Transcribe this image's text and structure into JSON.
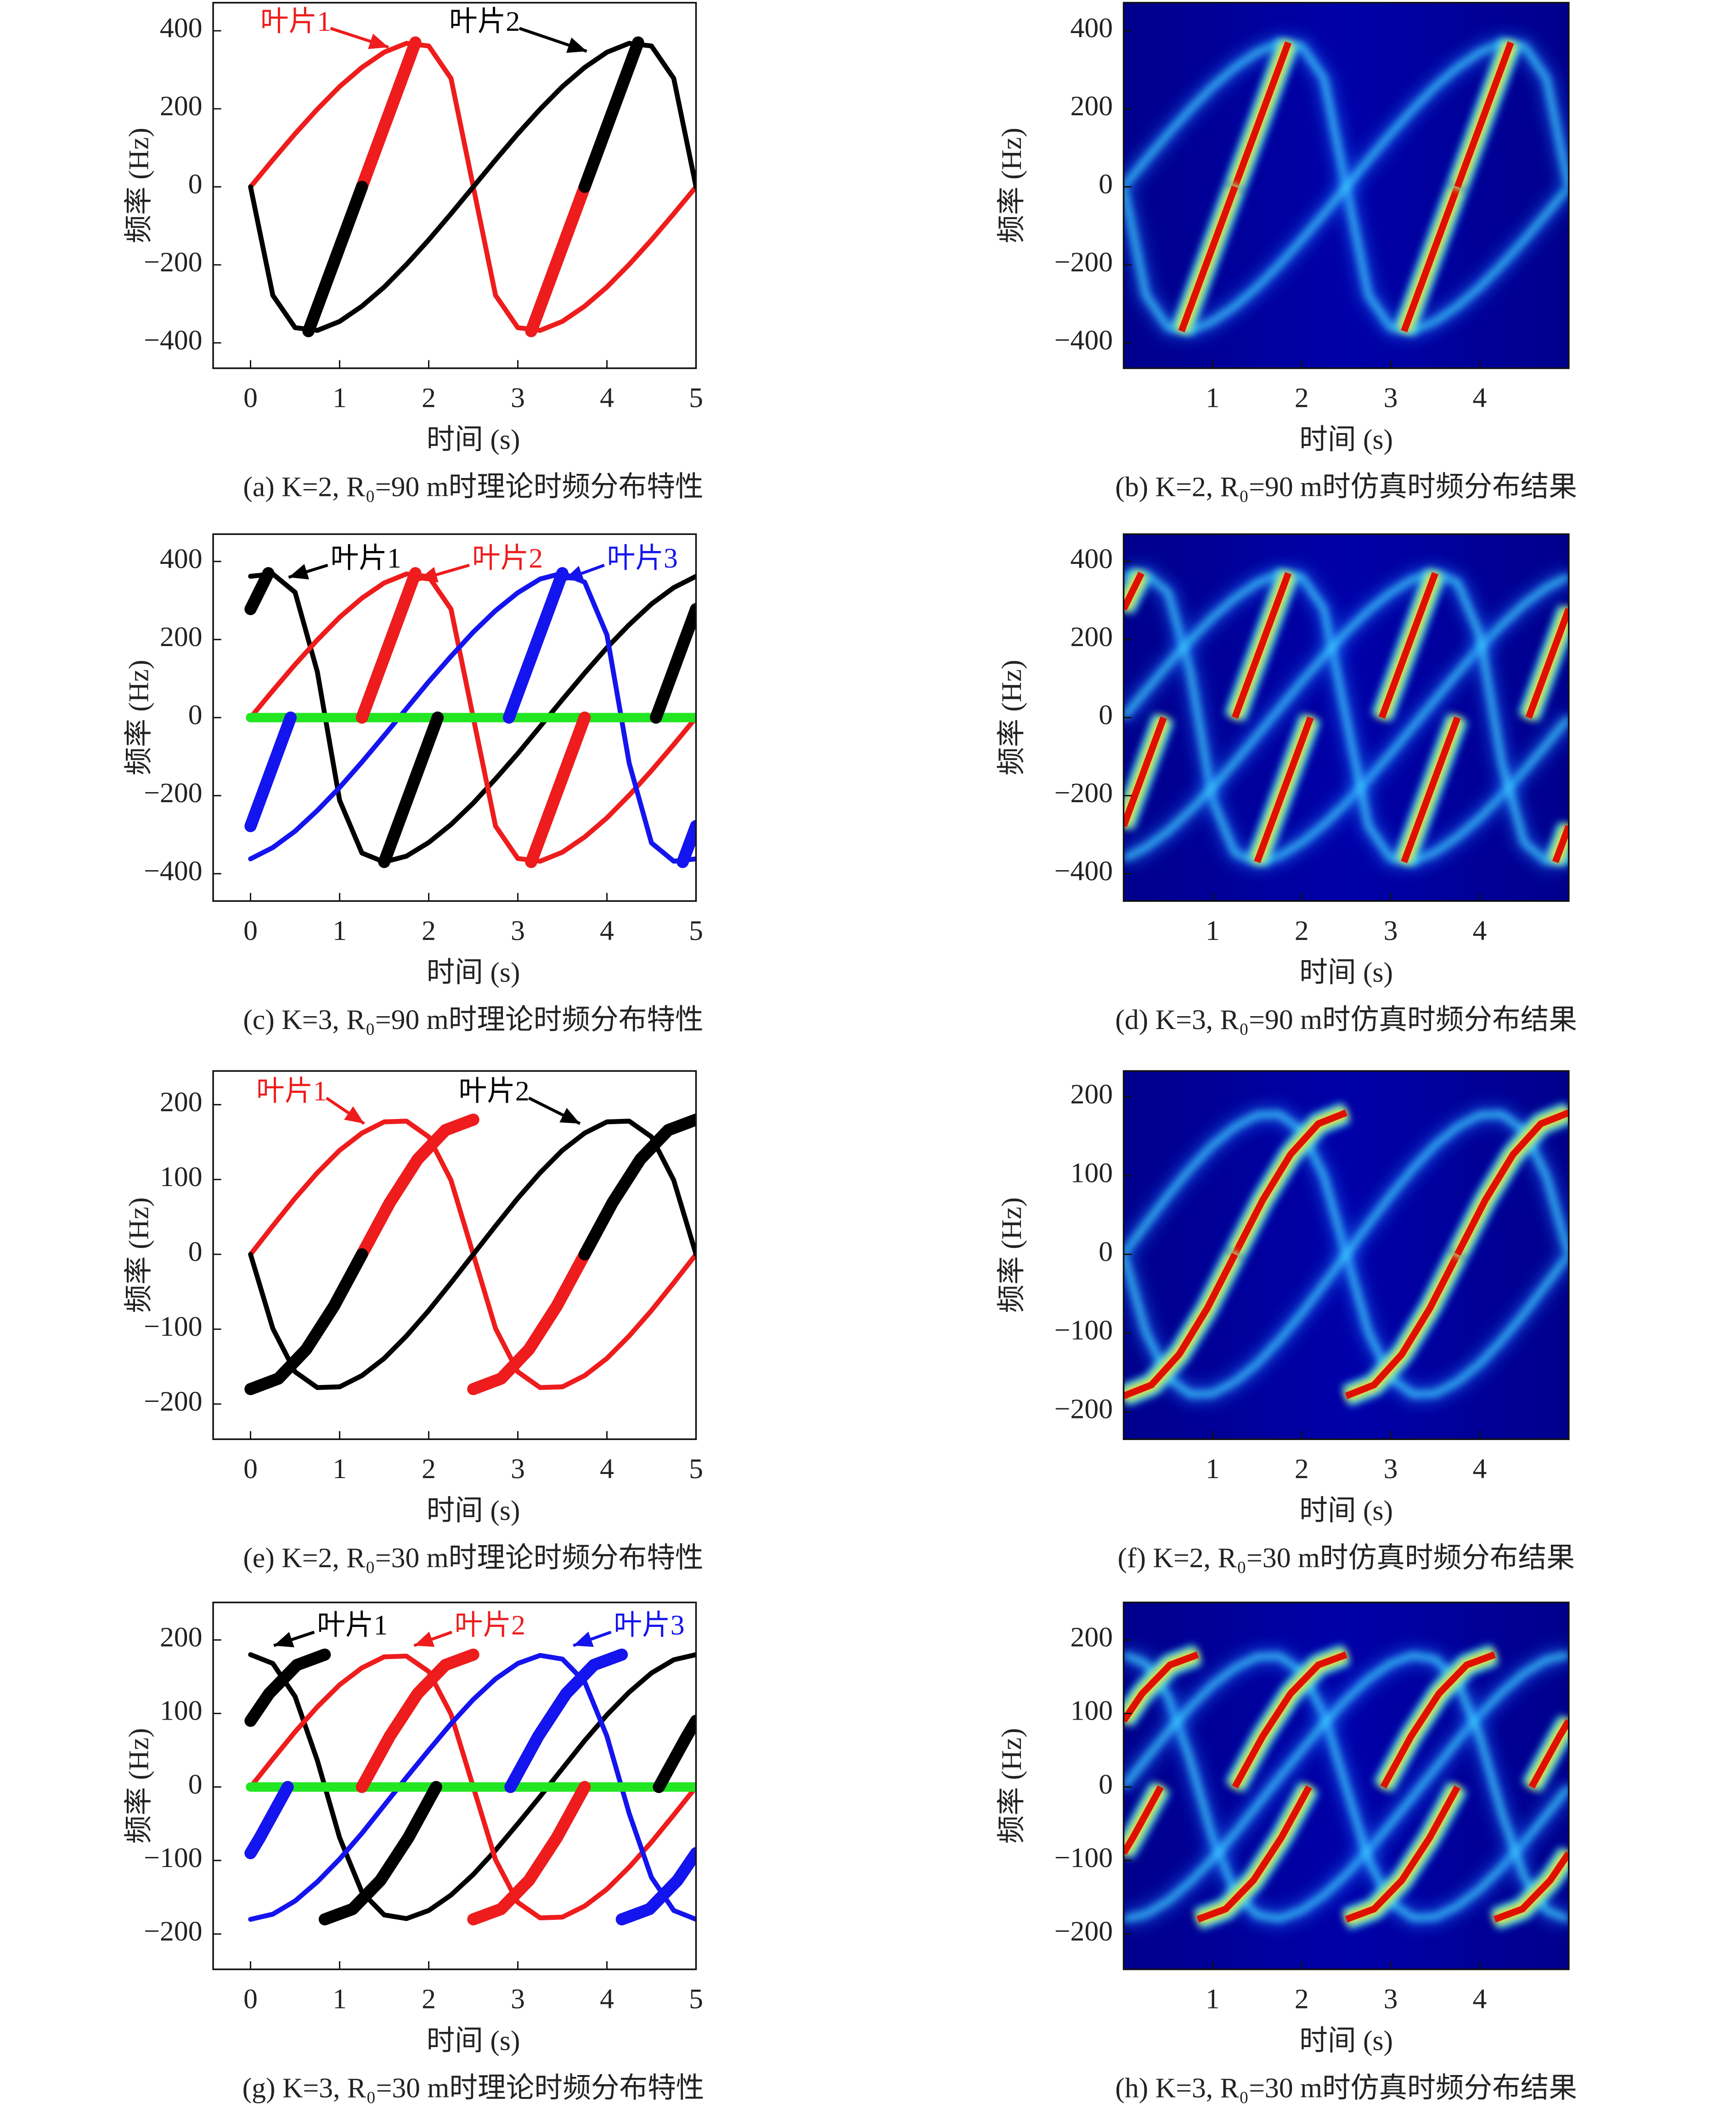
{
  "chart_data": [
    {
      "type": "line",
      "xlim": [
        -0.42,
        5
      ],
      "xticks": [
        0,
        1,
        2,
        3,
        4,
        5
      ],
      "ylim": [
        -465,
        472
      ],
      "yticks": [
        {
          "value": -400,
          "label": "−400"
        },
        {
          "value": -200,
          "label": "−200"
        },
        0,
        200,
        400
      ],
      "xlabel": "时间 (s)",
      "ylabel": "频率 (Hz)",
      "caption": "(a) K=2, R₀=90 m时理论时频分布特性",
      "x": [
        0,
        0.25,
        0.5,
        0.75,
        1,
        1.25,
        1.5,
        1.75,
        2,
        2.25,
        2.5,
        2.75,
        3,
        3.25,
        3.5,
        3.75,
        4,
        4.25,
        4.5,
        4.75,
        5
      ],
      "series": [
        {
          "name": "叶片1",
          "color": "#ee1c1c",
          "values": [
            0,
            69,
            136,
            199,
            257,
            306,
            345,
            368,
            361,
            278,
            0,
            -278,
            -361,
            -368,
            -345,
            -306,
            -257,
            -199,
            -136,
            -69,
            0
          ]
        },
        {
          "name": "叶片2",
          "color": "#000000",
          "values": [
            0,
            -278,
            -361,
            -368,
            -345,
            -306,
            -257,
            -199,
            -136,
            -69,
            0,
            69,
            136,
            199,
            257,
            306,
            345,
            368,
            361,
            278,
            0
          ]
        },
        {
          "color": "#ee1c1c",
          "width": "thick",
          "x": [
            1.25,
            1.85,
            2.5,
            3.15,
            3.75
          ],
          "values": [
            0,
            370,
            null,
            -370,
            0
          ]
        },
        {
          "color": "#000000",
          "width": "thick",
          "x": [
            0.65,
            1.25,
            2.5,
            3.75,
            4.35
          ],
          "values": [
            -370,
            0,
            null,
            0,
            370
          ]
        }
      ]
    },
    {
      "type": "spectrogram",
      "xlim": [
        0,
        5
      ],
      "xticks": [
        1,
        2,
        3,
        4
      ],
      "ylim": [
        -465,
        472
      ],
      "yticks": [
        {
          "value": -400,
          "label": "−400"
        },
        {
          "value": -200,
          "label": "−200"
        },
        0,
        200,
        400
      ],
      "xlabel": "时间 (s)",
      "ylabel": "频率 (Hz)",
      "caption": "(b) K=2, R₀=90 m时仿真时频分布结果"
    },
    {
      "type": "line",
      "xlim": [
        -0.42,
        5
      ],
      "xticks": [
        0,
        1,
        2,
        3,
        4,
        5
      ],
      "ylim": [
        -470,
        470
      ],
      "yticks": [
        {
          "value": -400,
          "label": "−400"
        },
        {
          "value": -200,
          "label": "−200"
        },
        0,
        200,
        400
      ],
      "xlabel": "时间 (s)",
      "ylabel": "频率 (Hz)",
      "caption": "(c) K=3, R₀=90 m时理论时频分布特性",
      "x": [
        0,
        0.25,
        0.5,
        0.75,
        1,
        1.25,
        1.5,
        1.75,
        2,
        2.25,
        2.5,
        2.75,
        3,
        3.25,
        3.5,
        3.75,
        4,
        4.25,
        4.5,
        4.75,
        5
      ],
      "series": [
        {
          "name": "叶片1",
          "color": "#000000",
          "values": [
            362,
            368,
            321,
            117,
            -212,
            -347,
            -370,
            -355,
            -320,
            -274,
            -219,
            -157,
            -92,
            -23,
            46,
            114,
            179,
            238,
            291,
            333,
            362
          ]
        },
        {
          "name": "叶片2",
          "color": "#ee1c1c",
          "values": [
            0,
            69,
            136,
            199,
            257,
            306,
            345,
            368,
            361,
            278,
            0,
            -278,
            -361,
            -368,
            -345,
            -306,
            -257,
            -199,
            -136,
            -69,
            0
          ]
        },
        {
          "name": "叶片3",
          "color": "#1414ee",
          "values": [
            -362,
            -333,
            -291,
            -238,
            -179,
            -114,
            -46,
            23,
            92,
            157,
            219,
            274,
            320,
            355,
            370,
            347,
            212,
            -117,
            -321,
            -368,
            -362
          ]
        },
        {
          "color": "#22e622",
          "width": "medium",
          "x": [
            0,
            5
          ],
          "values": [
            0,
            0
          ]
        },
        {
          "color": "#000000",
          "width": "thick",
          "x": [
            0,
            0.2,
            0.9,
            1.5,
            2.1,
            3.3,
            4.55,
            5
          ],
          "values": [
            278,
            370,
            null,
            -370,
            0,
            null,
            0,
            278
          ]
        },
        {
          "color": "#ee1c1c",
          "width": "thick",
          "x": [
            1.25,
            1.85,
            2.5,
            3.15,
            3.75
          ],
          "values": [
            0,
            370,
            null,
            -370,
            0
          ]
        },
        {
          "color": "#1414ee",
          "width": "thick",
          "x": [
            0,
            0.45,
            1.5,
            2.9,
            3.5,
            4.2,
            4.85,
            5
          ],
          "values": [
            -278,
            0,
            null,
            0,
            370,
            null,
            -370,
            -278
          ]
        }
      ]
    },
    {
      "type": "spectrogram",
      "xlim": [
        0,
        5
      ],
      "xticks": [
        1,
        2,
        3,
        4
      ],
      "ylim": [
        -470,
        470
      ],
      "yticks": [
        {
          "value": -400,
          "label": "−400"
        },
        {
          "value": -200,
          "label": "−200"
        },
        0,
        200,
        400
      ],
      "xlabel": "时间 (s)",
      "ylabel": "频率 (Hz)",
      "caption": "(d) K=3, R₀=90 m时仿真时频分布结果"
    },
    {
      "type": "line",
      "xlim": [
        -0.42,
        5
      ],
      "xticks": [
        0,
        1,
        2,
        3,
        4,
        5
      ],
      "ylim": [
        -247,
        245
      ],
      "yticks": [
        {
          "value": -200,
          "label": "−200"
        },
        {
          "value": -100,
          "label": "−100"
        },
        0,
        100,
        200
      ],
      "xlabel": "时间 (s)",
      "ylabel": "频率 (Hz)",
      "caption": "(e) K=2, R₀=30 m时理论时频分布特性",
      "x": [
        0,
        0.25,
        0.5,
        0.75,
        1,
        1.25,
        1.5,
        1.75,
        2,
        2.25,
        2.5,
        2.75,
        3,
        3.25,
        3.5,
        3.75,
        4,
        4.25,
        4.5,
        4.75,
        5
      ],
      "series": [
        {
          "name": "叶片1",
          "color": "#ee1c1c",
          "values": [
            0,
            38,
            75,
            109,
            139,
            162,
            177,
            178,
            157,
            99,
            0,
            -99,
            -157,
            -178,
            -177,
            -162,
            -139,
            -109,
            -75,
            -38,
            0
          ]
        },
        {
          "name": "叶片2",
          "color": "#000000",
          "values": [
            0,
            -99,
            -157,
            -178,
            -177,
            -162,
            -139,
            -109,
            -75,
            -38,
            0,
            38,
            75,
            109,
            139,
            162,
            177,
            178,
            157,
            99,
            0
          ]
        },
        {
          "color": "#ee1c1c",
          "width": "thick",
          "x": [
            1.25,
            1.5625,
            1.875,
            2.1875,
            2.5,
            2.5,
            2.5,
            2.8125,
            3.125,
            3.4375,
            3.75
          ],
          "values": [
            0,
            69,
            127,
            166,
            180,
            null,
            -180,
            -166,
            -127,
            -69,
            0
          ]
        },
        {
          "color": "#000000",
          "width": "thick",
          "x": [
            0,
            0.3125,
            0.625,
            0.9375,
            1.25,
            2.5,
            3.75,
            4.0625,
            4.375,
            4.6875,
            5
          ],
          "values": [
            -180,
            -166,
            -127,
            -69,
            0,
            null,
            0,
            69,
            127,
            166,
            180
          ]
        }
      ]
    },
    {
      "type": "spectrogram",
      "xlim": [
        0,
        5
      ],
      "xticks": [
        1,
        2,
        3,
        4
      ],
      "ylim": [
        -235,
        233
      ],
      "yticks": [
        {
          "value": -200,
          "label": "−200"
        },
        {
          "value": -100,
          "label": "−100"
        },
        0,
        100,
        200
      ],
      "xlabel": "时间 (s)",
      "ylabel": "频率 (Hz)",
      "caption": "(f) K=2, R₀=30 m时仿真时频分布结果"
    },
    {
      "type": "line",
      "xlim": [
        -0.42,
        5
      ],
      "xticks": [
        0,
        1,
        2,
        3,
        4,
        5
      ],
      "ylim": [
        -248,
        251
      ],
      "yticks": [
        {
          "value": -200,
          "label": "−200"
        },
        {
          "value": -100,
          "label": "−100"
        },
        0,
        100,
        200
      ],
      "xlabel": "时间 (s)",
      "ylabel": "频率 (Hz)",
      "caption": "(g) K=3, R₀=30 m时理论时频分布特性",
      "x": [
        0,
        0.25,
        0.5,
        0.75,
        1,
        1.25,
        1.5,
        1.75,
        2,
        2.25,
        2.5,
        2.75,
        3,
        3.25,
        3.5,
        3.75,
        4,
        4.25,
        4.5,
        4.75,
        5
      ],
      "series": [
        {
          "name": "叶片1",
          "color": "#000000",
          "values": [
            180,
            168,
            123,
            36,
            -69,
            -143,
            -174,
            -179,
            -168,
            -147,
            -119,
            -86,
            -50,
            -13,
            25,
            63,
            98,
            129,
            155,
            173,
            180
          ]
        },
        {
          "name": "叶片2",
          "color": "#ee1c1c",
          "values": [
            0,
            38,
            75,
            109,
            139,
            162,
            177,
            178,
            157,
            99,
            0,
            -99,
            -157,
            -178,
            -177,
            -162,
            -139,
            -109,
            -75,
            -38,
            0
          ]
        },
        {
          "name": "叶片3",
          "color": "#1414ee",
          "values": [
            -180,
            -173,
            -155,
            -129,
            -98,
            -63,
            -25,
            13,
            50,
            86,
            119,
            147,
            168,
            179,
            174,
            143,
            69,
            -36,
            -123,
            -168,
            -180
          ]
        },
        {
          "color": "#22e622",
          "width": "medium",
          "x": [
            0,
            5
          ],
          "values": [
            0,
            0
          ]
        },
        {
          "color": "#000000",
          "width": "thick",
          "x": [
            0,
            0.208,
            0.521,
            0.833,
            0.833,
            0.833,
            1.146,
            1.458,
            1.771,
            2.083,
            3.3,
            4.583,
            4.896,
            5
          ],
          "values": [
            90,
            127,
            166,
            180,
            null,
            -180,
            -166,
            -127,
            -69,
            0,
            null,
            0,
            69,
            90
          ]
        },
        {
          "color": "#ee1c1c",
          "width": "thick",
          "x": [
            1.25,
            1.5625,
            1.875,
            2.1875,
            2.5,
            2.5,
            2.5,
            2.8125,
            3.125,
            3.4375,
            3.75
          ],
          "values": [
            0,
            69,
            127,
            166,
            180,
            null,
            -180,
            -166,
            -127,
            -69,
            0
          ]
        },
        {
          "color": "#1414ee",
          "width": "thick",
          "x": [
            0,
            0.104,
            0.417,
            1.6,
            2.917,
            3.229,
            3.542,
            3.854,
            4.167,
            4.167,
            4.167,
            4.479,
            4.792,
            5
          ],
          "values": [
            -90,
            -69,
            0,
            null,
            0,
            69,
            127,
            166,
            180,
            null,
            -180,
            -166,
            -127,
            -90
          ]
        }
      ]
    },
    {
      "type": "spectrogram",
      "xlim": [
        0,
        5
      ],
      "xticks": [
        1,
        2,
        3,
        4
      ],
      "ylim": [
        -248,
        251
      ],
      "yticks": [
        {
          "value": -200,
          "label": "−200"
        },
        {
          "value": -100,
          "label": "−100"
        },
        0,
        100,
        200
      ],
      "xlabel": "时间 (s)",
      "ylabel": "频率 (Hz)",
      "caption": "(h) K=3, R₀=30 m时仿真时频分布结果"
    }
  ]
}
